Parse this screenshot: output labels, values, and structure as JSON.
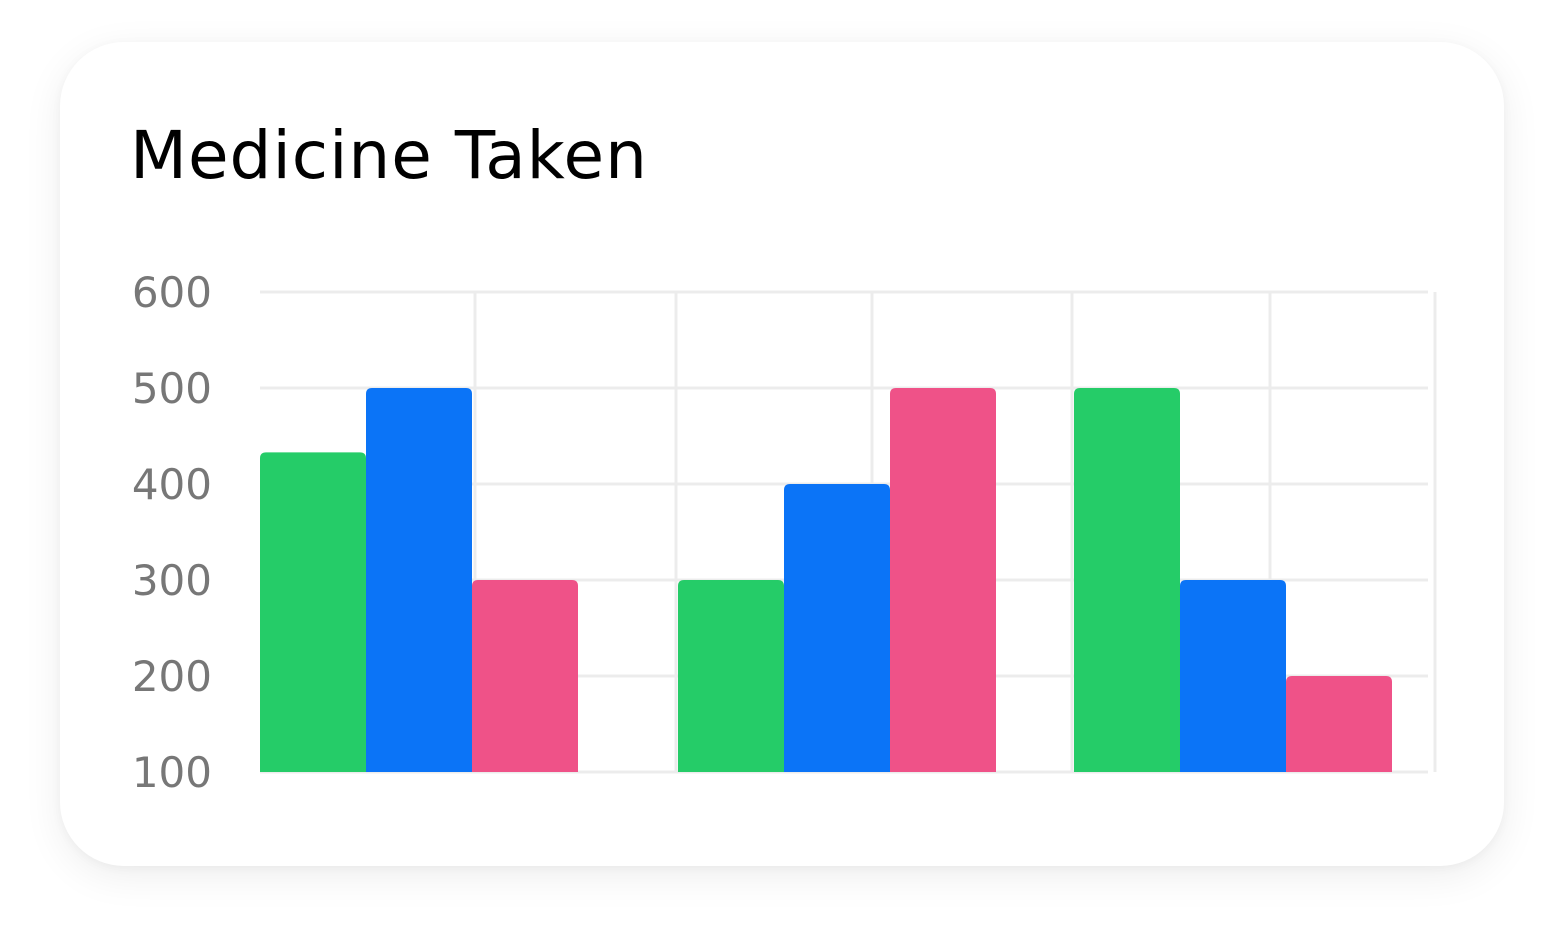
{
  "chart_data": {
    "type": "bar",
    "title": "Medicine Taken",
    "categories": [
      "",
      "",
      ""
    ],
    "series": [
      {
        "color": "#25cc68",
        "values": [
          433,
          300,
          500
        ]
      },
      {
        "color": "#0b74f7",
        "values": [
          500,
          400,
          300
        ]
      },
      {
        "color": "#ef5288",
        "values": [
          300,
          500,
          200
        ]
      }
    ],
    "y_ticks": [
      "600",
      "500",
      "400",
      "300",
      "200",
      "100"
    ],
    "ylim": [
      100,
      600
    ],
    "xlabel": "",
    "ylabel": "",
    "grid": true,
    "legend": "none"
  }
}
